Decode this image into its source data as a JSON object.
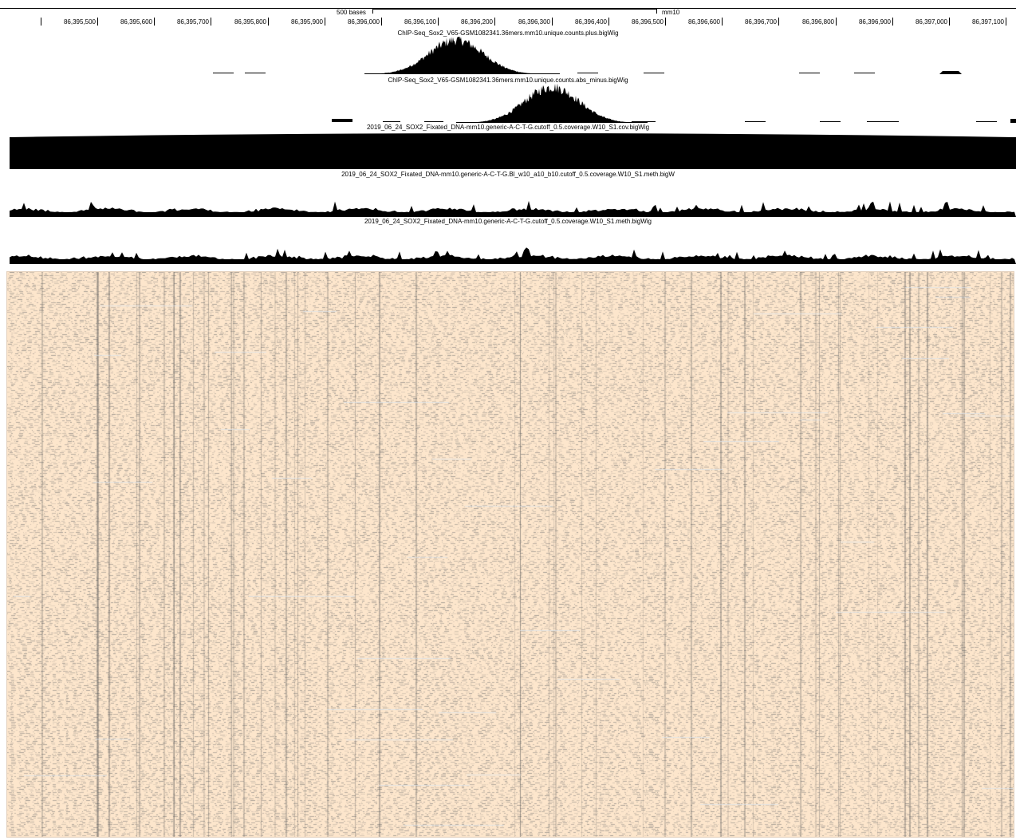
{
  "ruler": {
    "scale_label": "500 bases",
    "assembly": "mm10",
    "ticks": [
      "86,395,500",
      "86,395,600",
      "86,395,700",
      "86,395,800",
      "86,395,900",
      "86,396,000",
      "86,396,100",
      "86,396,200",
      "86,396,300",
      "86,396,400",
      "86,396,500",
      "86,396,600",
      "86,396,700",
      "86,396,800",
      "86,396,900",
      "86,397,000",
      "86,397,100"
    ]
  },
  "tracks": [
    {
      "id": "chip-plus",
      "label": "ChIP-Seq_Sox2_V65-GSM1082341.36mers.mm10.unique.counts.plus.bigWig"
    },
    {
      "id": "chip-minus",
      "label": "ChIP-Seq_Sox2_V65-GSM1082341.36mers.mm10.unique.counts.abs_minus.bigWig"
    },
    {
      "id": "coverage",
      "label": "2019_06_24_SOX2_Fixated_DNA-mm10.generic-A-C-T-G.cutoff_0.5.coverage.W10_S1.cov.bigWig"
    },
    {
      "id": "meth-bl",
      "label": "2019_06_24_SOX2_Fixated_DNA-mm10.generic-A-C-T-G.Bl_w10_a10_b10.cutoff_0.5.coverage.W10_S1.meth.bigW"
    },
    {
      "id": "meth",
      "label": "2019_06_24_SOX2_Fixated_DNA-mm10.generic-A-C-T-G.cutoff_0.5.coverage.W10_S1.meth.bigWig"
    }
  ],
  "colors": {
    "signal": "#000000",
    "read_background": "#fde6cc",
    "read_mark": "#7f7f7f"
  }
}
